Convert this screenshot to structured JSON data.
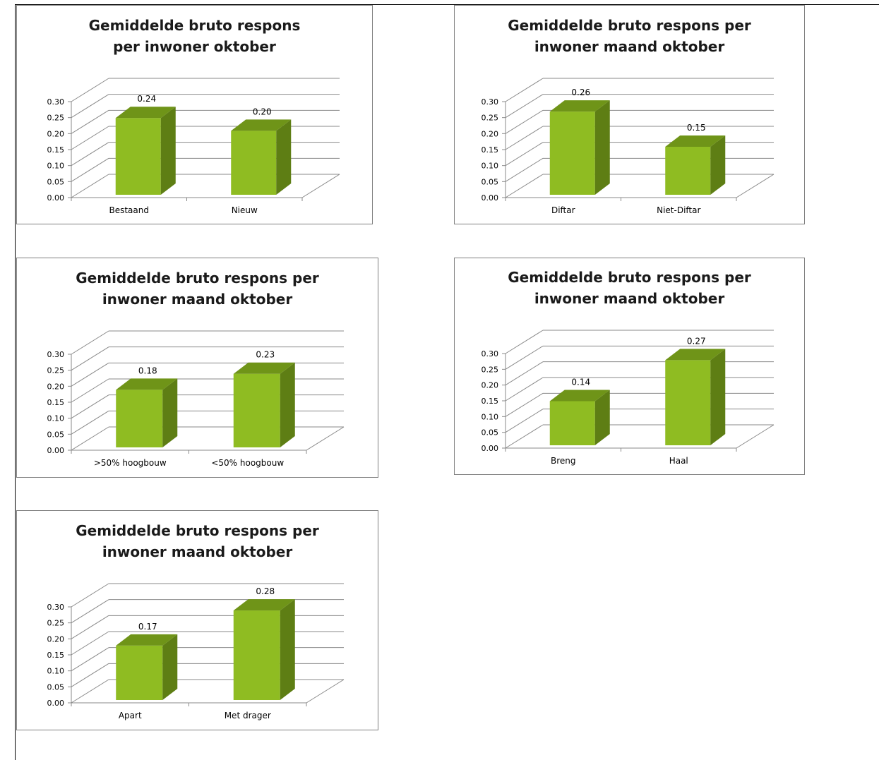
{
  "chart_data": [
    {
      "type": "bar",
      "title": "Gemiddelde bruto respons\nper inwoner oktober",
      "categories": [
        "Bestaand",
        "Nieuw"
      ],
      "values": [
        0.24,
        0.2
      ],
      "value_labels": [
        "0.24",
        "0.20"
      ],
      "yticks": [
        "0.00",
        "0.05",
        "0.10",
        "0.15",
        "0.20",
        "0.25",
        "0.30"
      ],
      "ylim": [
        0,
        0.3
      ],
      "xlabel": "",
      "ylabel": "",
      "grid": true,
      "legend": "none",
      "style": "3d-column",
      "bar_color": "#8fbc22",
      "bar_side_color": "#5e7e14",
      "bar_top_color": "#6f9418"
    },
    {
      "type": "bar",
      "title": "Gemiddelde bruto respons per\ninwoner maand oktober",
      "categories": [
        "Diftar",
        "Niet-Diftar"
      ],
      "values": [
        0.26,
        0.15
      ],
      "value_labels": [
        "0.26",
        "0.15"
      ],
      "yticks": [
        "0.00",
        "0.05",
        "0.10",
        "0.15",
        "0.20",
        "0.25",
        "0.30"
      ],
      "ylim": [
        0,
        0.3
      ],
      "xlabel": "",
      "ylabel": "",
      "grid": true,
      "legend": "none",
      "style": "3d-column",
      "bar_color": "#8fbc22",
      "bar_side_color": "#5e7e14",
      "bar_top_color": "#6f9418"
    },
    {
      "type": "bar",
      "title": "Gemiddelde bruto respons per\ninwoner maand oktober",
      "categories": [
        ">50% hoogbouw",
        "<50% hoogbouw"
      ],
      "values": [
        0.18,
        0.23
      ],
      "value_labels": [
        "0.18",
        "0.23"
      ],
      "yticks": [
        "0.00",
        "0.05",
        "0.10",
        "0.15",
        "0.20",
        "0.25",
        "0.30"
      ],
      "ylim": [
        0,
        0.3
      ],
      "xlabel": "",
      "ylabel": "",
      "grid": true,
      "legend": "none",
      "style": "3d-column",
      "bar_color": "#8fbc22",
      "bar_side_color": "#5e7e14",
      "bar_top_color": "#6f9418"
    },
    {
      "type": "bar",
      "title": "Gemiddelde bruto respons per\ninwoner maand oktober",
      "categories": [
        "Breng",
        "Haal"
      ],
      "values": [
        0.14,
        0.27
      ],
      "value_labels": [
        "0.14",
        "0.27"
      ],
      "yticks": [
        "0.00",
        "0.05",
        "0.10",
        "0.15",
        "0.20",
        "0.25",
        "0.30"
      ],
      "ylim": [
        0,
        0.3
      ],
      "xlabel": "",
      "ylabel": "",
      "grid": true,
      "legend": "none",
      "style": "3d-column",
      "bar_color": "#8fbc22",
      "bar_side_color": "#5e7e14",
      "bar_top_color": "#6f9418"
    },
    {
      "type": "bar",
      "title": "Gemiddelde bruto respons per\ninwoner maand oktober",
      "categories": [
        "Apart",
        "Met drager"
      ],
      "values": [
        0.17,
        0.28
      ],
      "value_labels": [
        "0.17",
        "0.28"
      ],
      "yticks": [
        "0.00",
        "0.05",
        "0.10",
        "0.15",
        "0.20",
        "0.25",
        "0.30"
      ],
      "ylim": [
        0,
        0.3
      ],
      "xlabel": "",
      "ylabel": "",
      "grid": true,
      "legend": "none",
      "style": "3d-column",
      "bar_color": "#8fbc22",
      "bar_side_color": "#5e7e14",
      "bar_top_color": "#6f9418"
    }
  ]
}
